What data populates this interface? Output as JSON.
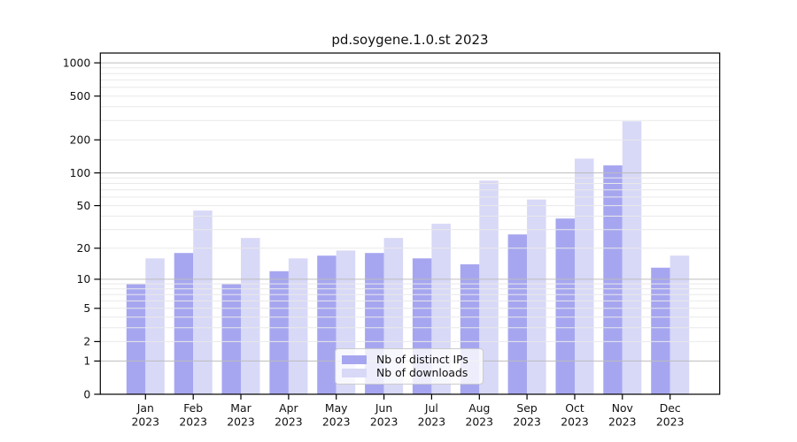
{
  "title": "pd.soygene.1.0.st 2023",
  "chart_data": {
    "type": "bar",
    "title": "pd.soygene.1.0.st 2023",
    "categories": [
      "Jan 2023",
      "Feb 2023",
      "Mar 2023",
      "Apr 2023",
      "May 2023",
      "Jun 2023",
      "Jul 2023",
      "Aug 2023",
      "Sep 2023",
      "Oct 2023",
      "Nov 2023",
      "Dec 2023"
    ],
    "series": [
      {
        "name": "Nb of distinct IPs",
        "color": "#a6a6f0",
        "values": [
          9,
          18,
          9,
          12,
          17,
          18,
          16,
          14,
          27,
          38,
          117,
          13
        ]
      },
      {
        "name": "Nb of downloads",
        "color": "#d8d8f7",
        "values": [
          16,
          45,
          25,
          16,
          19,
          25,
          34,
          85,
          57,
          135,
          295,
          17
        ]
      }
    ],
    "xlabel": "",
    "ylabel": "",
    "yscale": "log1p",
    "y_ticks": [
      0,
      1,
      2,
      5,
      10,
      20,
      50,
      100,
      200,
      500,
      1000
    ],
    "ylim": [
      0,
      1230
    ],
    "grid": true,
    "major_grid_values": [
      1,
      10,
      100,
      1000
    ],
    "legend_position": "lower center",
    "colors": {
      "major_grid": "#bdbdbd",
      "minor_grid": "#e9e9e9",
      "spine": "#000000",
      "text": "#111111",
      "background": "#ffffff"
    }
  }
}
